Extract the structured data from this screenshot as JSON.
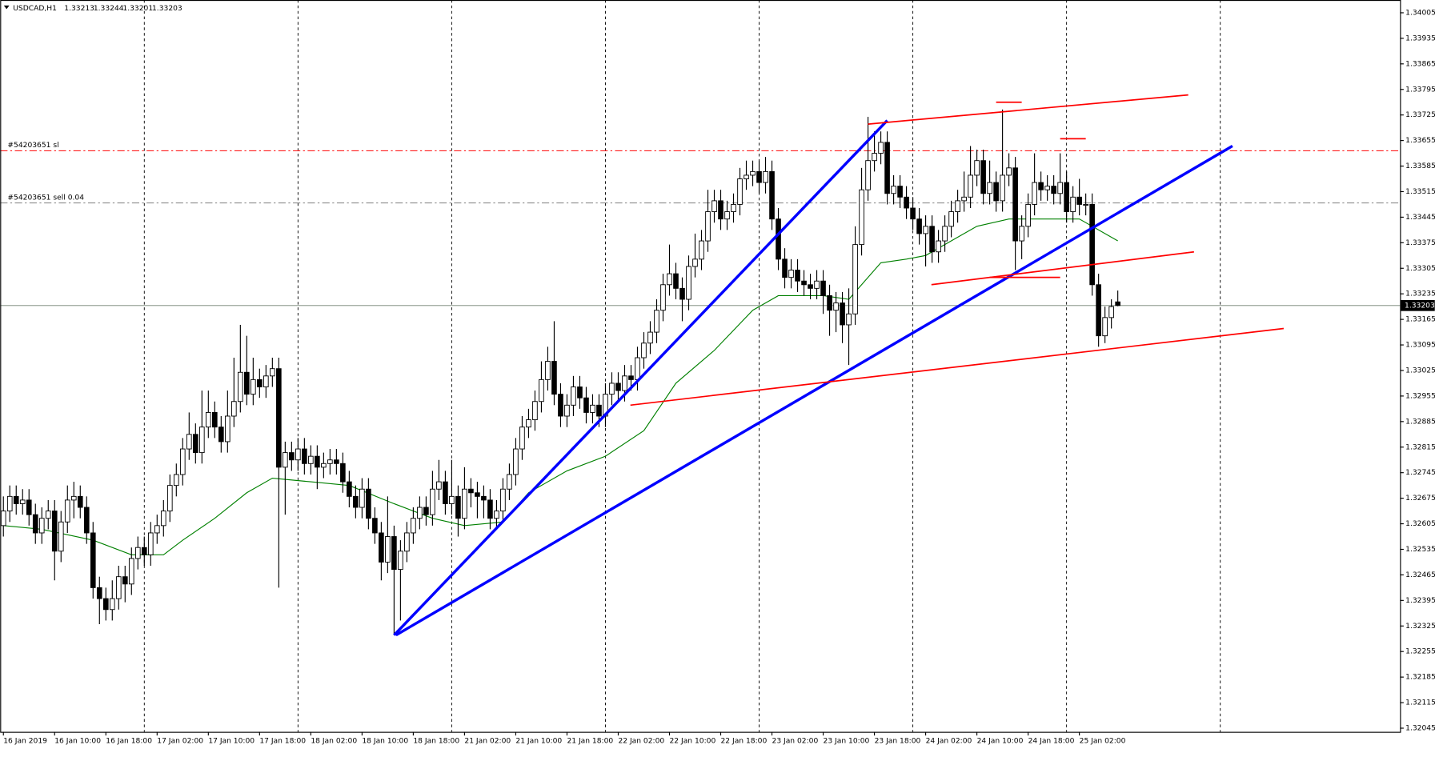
{
  "chart_data": {
    "type": "candlestick",
    "symbol": "USDCAD,H1",
    "xlim": [
      -0.5,
      218.07
    ],
    "ylim": [
      1.32035,
      1.3404
    ],
    "yticks": [
      1.34005,
      1.33935,
      1.33865,
      1.33795,
      1.33725,
      1.33655,
      1.33585,
      1.33515,
      1.33445,
      1.33375,
      1.33305,
      1.33235,
      1.33165,
      1.33095,
      1.33025,
      1.32955,
      1.32885,
      1.32815,
      1.32745,
      1.32675,
      1.32605,
      1.32535,
      1.32465,
      1.32395,
      1.32325,
      1.32255,
      1.32185,
      1.32115,
      1.32045
    ],
    "xticks": [
      {
        "value": 0,
        "label": "16 Jan 2019"
      },
      {
        "value": 8,
        "label": "16 Jan 10:00"
      },
      {
        "value": 16,
        "label": "16 Jan 18:00"
      },
      {
        "value": 24,
        "label": "17 Jan 02:00"
      },
      {
        "value": 32,
        "label": "17 Jan 10:00"
      },
      {
        "value": 40,
        "label": "17 Jan 18:00"
      },
      {
        "value": 48,
        "label": "18 Jan 02:00"
      },
      {
        "value": 56,
        "label": "18 Jan 10:00"
      },
      {
        "value": 64,
        "label": "18 Jan 18:00"
      },
      {
        "value": 72,
        "label": "21 Jan 02:00"
      },
      {
        "value": 80,
        "label": "21 Jan 10:00"
      },
      {
        "value": 88,
        "label": "21 Jan 18:00"
      },
      {
        "value": 96,
        "label": "22 Jan 02:00"
      },
      {
        "value": 104,
        "label": "22 Jan 10:00"
      },
      {
        "value": 112,
        "label": "22 Jan 18:00"
      },
      {
        "value": 120,
        "label": "23 Jan 02:00"
      },
      {
        "value": 128,
        "label": "23 Jan 10:00"
      },
      {
        "value": 136,
        "label": "23 Jan 18:00"
      },
      {
        "value": 144,
        "label": "24 Jan 02:00"
      },
      {
        "value": 152,
        "label": "24 Jan 10:00"
      },
      {
        "value": 160,
        "label": "24 Jan 18:00"
      },
      {
        "value": 168,
        "label": "25 Jan 02:00"
      }
    ],
    "vgrid": [
      22,
      46,
      70,
      94,
      118,
      142,
      166,
      190
    ],
    "bull_color": "#ffffff",
    "bear_color": "#000000",
    "ohlc": [
      [
        1.326,
        1.3268,
        1.3257,
        1.3264
      ],
      [
        1.3264,
        1.3271,
        1.3261,
        1.3268
      ],
      [
        1.3268,
        1.3271,
        1.3263,
        1.3266
      ],
      [
        1.3266,
        1.327,
        1.3263,
        1.3267
      ],
      [
        1.3267,
        1.327,
        1.326,
        1.3263
      ],
      [
        1.3263,
        1.3266,
        1.3255,
        1.3258
      ],
      [
        1.3258,
        1.3265,
        1.3255,
        1.3262
      ],
      [
        1.3262,
        1.3267,
        1.3259,
        1.3264
      ],
      [
        1.3264,
        1.3267,
        1.3245,
        1.3253
      ],
      [
        1.3253,
        1.3264,
        1.325,
        1.3261
      ],
      [
        1.3261,
        1.3271,
        1.3258,
        1.3267
      ],
      [
        1.3267,
        1.3272,
        1.3262,
        1.3268
      ],
      [
        1.3268,
        1.3271,
        1.3262,
        1.3265
      ],
      [
        1.3265,
        1.3268,
        1.3255,
        1.3258
      ],
      [
        1.3258,
        1.3261,
        1.324,
        1.3243
      ],
      [
        1.3243,
        1.3246,
        1.3233,
        1.324
      ],
      [
        1.324,
        1.3243,
        1.3234,
        1.3237
      ],
      [
        1.3237,
        1.3245,
        1.3234,
        1.324
      ],
      [
        1.324,
        1.3249,
        1.3237,
        1.3246
      ],
      [
        1.3246,
        1.3249,
        1.3239,
        1.3244
      ],
      [
        1.3244,
        1.3254,
        1.3241,
        1.3251
      ],
      [
        1.3251,
        1.3257,
        1.3248,
        1.3254
      ],
      [
        1.3254,
        1.3257,
        1.3249,
        1.3252
      ],
      [
        1.3252,
        1.3261,
        1.3249,
        1.3258
      ],
      [
        1.3258,
        1.3263,
        1.3255,
        1.326
      ],
      [
        1.326,
        1.3267,
        1.3257,
        1.3264
      ],
      [
        1.3264,
        1.3274,
        1.3261,
        1.3271
      ],
      [
        1.3271,
        1.3277,
        1.3268,
        1.3274
      ],
      [
        1.3274,
        1.3284,
        1.3271,
        1.3281
      ],
      [
        1.3281,
        1.3291,
        1.3278,
        1.3285
      ],
      [
        1.3285,
        1.3288,
        1.3277,
        1.328
      ],
      [
        1.328,
        1.3297,
        1.3277,
        1.3287
      ],
      [
        1.3287,
        1.3297,
        1.3284,
        1.3291
      ],
      [
        1.3291,
        1.3294,
        1.3284,
        1.3287
      ],
      [
        1.3287,
        1.329,
        1.328,
        1.3283
      ],
      [
        1.3283,
        1.3297,
        1.328,
        1.329
      ],
      [
        1.329,
        1.3306,
        1.3287,
        1.3294
      ],
      [
        1.3294,
        1.3315,
        1.3291,
        1.3302
      ],
      [
        1.3302,
        1.3312,
        1.3293,
        1.3296
      ],
      [
        1.3296,
        1.3306,
        1.3293,
        1.33
      ],
      [
        1.33,
        1.3303,
        1.3295,
        1.3298
      ],
      [
        1.3298,
        1.3304,
        1.3295,
        1.3301
      ],
      [
        1.3301,
        1.3306,
        1.3298,
        1.3303
      ],
      [
        1.3303,
        1.3306,
        1.3243,
        1.3276
      ],
      [
        1.3276,
        1.3283,
        1.3263,
        1.328
      ],
      [
        1.328,
        1.3283,
        1.3275,
        1.3278
      ],
      [
        1.3278,
        1.3284,
        1.3275,
        1.3281
      ],
      [
        1.3281,
        1.3284,
        1.3274,
        1.3277
      ],
      [
        1.3277,
        1.3282,
        1.3274,
        1.3279
      ],
      [
        1.3279,
        1.3282,
        1.327,
        1.3276
      ],
      [
        1.3276,
        1.328,
        1.3273,
        1.3277
      ],
      [
        1.3277,
        1.3281,
        1.3274,
        1.3278
      ],
      [
        1.3278,
        1.3281,
        1.3274,
        1.3277
      ],
      [
        1.3277,
        1.328,
        1.3269,
        1.3272
      ],
      [
        1.3272,
        1.3275,
        1.3265,
        1.3268
      ],
      [
        1.3268,
        1.3271,
        1.3262,
        1.3265
      ],
      [
        1.3265,
        1.3273,
        1.3262,
        1.327
      ],
      [
        1.327,
        1.3273,
        1.3259,
        1.3262
      ],
      [
        1.3262,
        1.3265,
        1.3255,
        1.3258
      ],
      [
        1.3258,
        1.3261,
        1.3245,
        1.325
      ],
      [
        1.325,
        1.3268,
        1.3247,
        1.3257
      ],
      [
        1.3257,
        1.326,
        1.323,
        1.3248
      ],
      [
        1.3248,
        1.3256,
        1.3234,
        1.3253
      ],
      [
        1.3253,
        1.3261,
        1.325,
        1.3258
      ],
      [
        1.3258,
        1.3265,
        1.3255,
        1.3262
      ],
      [
        1.3262,
        1.3268,
        1.3259,
        1.3265
      ],
      [
        1.3265,
        1.3268,
        1.326,
        1.3263
      ],
      [
        1.3263,
        1.3275,
        1.326,
        1.327
      ],
      [
        1.327,
        1.3278,
        1.3267,
        1.3272
      ],
      [
        1.3272,
        1.3275,
        1.3263,
        1.3266
      ],
      [
        1.3266,
        1.3278,
        1.3263,
        1.3268
      ],
      [
        1.3268,
        1.3271,
        1.3257,
        1.3262
      ],
      [
        1.3262,
        1.3276,
        1.3259,
        1.327
      ],
      [
        1.327,
        1.3273,
        1.3265,
        1.3269
      ],
      [
        1.3269,
        1.3272,
        1.3262,
        1.3268
      ],
      [
        1.3268,
        1.3271,
        1.3262,
        1.3267
      ],
      [
        1.3267,
        1.327,
        1.3259,
        1.3262
      ],
      [
        1.3262,
        1.3267,
        1.3259,
        1.3264
      ],
      [
        1.3264,
        1.3273,
        1.3261,
        1.327
      ],
      [
        1.327,
        1.3277,
        1.3267,
        1.3274
      ],
      [
        1.3274,
        1.3284,
        1.3271,
        1.3281
      ],
      [
        1.3281,
        1.329,
        1.3278,
        1.3287
      ],
      [
        1.3287,
        1.3292,
        1.3284,
        1.3289
      ],
      [
        1.3289,
        1.3297,
        1.3286,
        1.3294
      ],
      [
        1.3294,
        1.3305,
        1.3291,
        1.33
      ],
      [
        1.33,
        1.3309,
        1.3297,
        1.3305
      ],
      [
        1.3305,
        1.3316,
        1.3293,
        1.3296
      ],
      [
        1.3296,
        1.3299,
        1.3287,
        1.329
      ],
      [
        1.329,
        1.3296,
        1.3287,
        1.3293
      ],
      [
        1.3293,
        1.3301,
        1.329,
        1.3298
      ],
      [
        1.3298,
        1.3301,
        1.3292,
        1.3295
      ],
      [
        1.3295,
        1.3298,
        1.3288,
        1.3291
      ],
      [
        1.3291,
        1.3296,
        1.3288,
        1.3293
      ],
      [
        1.3293,
        1.3296,
        1.3287,
        1.329
      ],
      [
        1.329,
        1.3299,
        1.3287,
        1.3296
      ],
      [
        1.3296,
        1.3302,
        1.3293,
        1.3299
      ],
      [
        1.3299,
        1.3302,
        1.3294,
        1.3297
      ],
      [
        1.3297,
        1.3304,
        1.3294,
        1.3301
      ],
      [
        1.3301,
        1.3304,
        1.3297,
        1.33
      ],
      [
        1.33,
        1.3309,
        1.3297,
        1.3306
      ],
      [
        1.3306,
        1.3313,
        1.3303,
        1.331
      ],
      [
        1.331,
        1.3316,
        1.3307,
        1.3313
      ],
      [
        1.3313,
        1.3322,
        1.331,
        1.3319
      ],
      [
        1.3319,
        1.3329,
        1.3316,
        1.3326
      ],
      [
        1.3326,
        1.3337,
        1.3323,
        1.3329
      ],
      [
        1.3329,
        1.3332,
        1.3322,
        1.3325
      ],
      [
        1.3325,
        1.3328,
        1.3316,
        1.3322
      ],
      [
        1.3322,
        1.3334,
        1.3319,
        1.3331
      ],
      [
        1.3331,
        1.334,
        1.3328,
        1.3333
      ],
      [
        1.3333,
        1.3341,
        1.333,
        1.3338
      ],
      [
        1.3338,
        1.3352,
        1.3335,
        1.3346
      ],
      [
        1.3346,
        1.3352,
        1.3343,
        1.3349
      ],
      [
        1.3349,
        1.3352,
        1.3341,
        1.3344
      ],
      [
        1.3344,
        1.3349,
        1.3341,
        1.3346
      ],
      [
        1.3346,
        1.3351,
        1.3343,
        1.3348
      ],
      [
        1.3348,
        1.3358,
        1.3345,
        1.3355
      ],
      [
        1.3355,
        1.336,
        1.3352,
        1.3356
      ],
      [
        1.3356,
        1.336,
        1.3353,
        1.3357
      ],
      [
        1.3357,
        1.336,
        1.3351,
        1.3354
      ],
      [
        1.3354,
        1.3361,
        1.3351,
        1.3357
      ],
      [
        1.3357,
        1.336,
        1.3341,
        1.3344
      ],
      [
        1.3344,
        1.3347,
        1.333,
        1.3333
      ],
      [
        1.3333,
        1.3336,
        1.3325,
        1.3328
      ],
      [
        1.3328,
        1.3333,
        1.3325,
        1.333
      ],
      [
        1.333,
        1.3333,
        1.3324,
        1.3327
      ],
      [
        1.3327,
        1.333,
        1.3323,
        1.3326
      ],
      [
        1.3326,
        1.3329,
        1.3322,
        1.3325
      ],
      [
        1.3325,
        1.333,
        1.3322,
        1.3327
      ],
      [
        1.3327,
        1.333,
        1.3318,
        1.3323
      ],
      [
        1.3323,
        1.3326,
        1.3312,
        1.3319
      ],
      [
        1.3319,
        1.3324,
        1.3313,
        1.3321
      ],
      [
        1.3321,
        1.3324,
        1.331,
        1.3315
      ],
      [
        1.3315,
        1.3325,
        1.3304,
        1.3318
      ],
      [
        1.3318,
        1.3342,
        1.3315,
        1.3337
      ],
      [
        1.3337,
        1.3358,
        1.3334,
        1.3352
      ],
      [
        1.3352,
        1.3372,
        1.3349,
        1.336
      ],
      [
        1.336,
        1.3368,
        1.3357,
        1.3362
      ],
      [
        1.3362,
        1.3368,
        1.3359,
        1.3365
      ],
      [
        1.3365,
        1.3368,
        1.3348,
        1.3351
      ],
      [
        1.3351,
        1.3356,
        1.3348,
        1.3353
      ],
      [
        1.3353,
        1.3356,
        1.3347,
        1.335
      ],
      [
        1.335,
        1.3353,
        1.3344,
        1.3347
      ],
      [
        1.3347,
        1.335,
        1.3341,
        1.3344
      ],
      [
        1.3344,
        1.3347,
        1.3337,
        1.334
      ],
      [
        1.334,
        1.3345,
        1.3331,
        1.3342
      ],
      [
        1.3342,
        1.3345,
        1.3332,
        1.3335
      ],
      [
        1.3335,
        1.3341,
        1.3332,
        1.3338
      ],
      [
        1.3338,
        1.3345,
        1.3335,
        1.3342
      ],
      [
        1.3342,
        1.3349,
        1.3339,
        1.3346
      ],
      [
        1.3346,
        1.3352,
        1.3343,
        1.3349
      ],
      [
        1.3349,
        1.3357,
        1.3346,
        1.335
      ],
      [
        1.335,
        1.3364,
        1.3347,
        1.3356
      ],
      [
        1.3356,
        1.3363,
        1.3353,
        1.336
      ],
      [
        1.336,
        1.3363,
        1.3348,
        1.3351
      ],
      [
        1.3351,
        1.336,
        1.3348,
        1.3354
      ],
      [
        1.3354,
        1.3357,
        1.3346,
        1.3349
      ],
      [
        1.3349,
        1.3374,
        1.3346,
        1.3356
      ],
      [
        1.3356,
        1.3362,
        1.3353,
        1.3358
      ],
      [
        1.3358,
        1.3361,
        1.333,
        1.3338
      ],
      [
        1.3338,
        1.3345,
        1.3333,
        1.3342
      ],
      [
        1.3342,
        1.3351,
        1.3339,
        1.3348
      ],
      [
        1.3348,
        1.3362,
        1.3345,
        1.3354
      ],
      [
        1.3354,
        1.3357,
        1.3349,
        1.3352
      ],
      [
        1.3352,
        1.3356,
        1.3349,
        1.3353
      ],
      [
        1.3353,
        1.3356,
        1.3348,
        1.3351
      ],
      [
        1.3351,
        1.3362,
        1.3348,
        1.3354
      ],
      [
        1.3354,
        1.3357,
        1.3343,
        1.3346
      ],
      [
        1.3346,
        1.3353,
        1.3343,
        1.335
      ],
      [
        1.335,
        1.3355,
        1.3345,
        1.3348
      ],
      [
        1.3348,
        1.3351,
        1.3345,
        1.3348
      ],
      [
        1.3348,
        1.3351,
        1.3323,
        1.3326
      ],
      [
        1.3326,
        1.3329,
        1.3309,
        1.3312
      ],
      [
        1.3312,
        1.332,
        1.331,
        1.3317
      ],
      [
        1.3317,
        1.3322,
        1.3314,
        1.332
      ],
      [
        1.33213,
        1.33244,
        1.33201,
        1.33203
      ]
    ],
    "ma": {
      "color": "#008000",
      "x": [
        0,
        6,
        14,
        20,
        25,
        28,
        33,
        38,
        42,
        48,
        54,
        61,
        67,
        72,
        78,
        82,
        88,
        94,
        100,
        105,
        111,
        117,
        121,
        128,
        132,
        137,
        141,
        144,
        148,
        152,
        157,
        162,
        168,
        174
      ],
      "values": [
        1.326,
        1.3259,
        1.3256,
        1.3252,
        1.3252,
        1.3256,
        1.3262,
        1.3269,
        1.3273,
        1.3272,
        1.3271,
        1.3266,
        1.3262,
        1.326,
        1.3261,
        1.3269,
        1.3275,
        1.3279,
        1.3286,
        1.3299,
        1.3308,
        1.3319,
        1.3323,
        1.3323,
        1.3322,
        1.3332,
        1.3333,
        1.3334,
        1.3338,
        1.3342,
        1.3344,
        1.3344,
        1.3344,
        1.3338
      ]
    },
    "trendlines": [
      {
        "color": "#0000ff",
        "width": 3,
        "x": [
          61,
          138
        ],
        "values": [
          1.323,
          1.3371
        ]
      },
      {
        "color": "#0000ff",
        "width": 3,
        "x": [
          61.3,
          191.9
        ],
        "values": [
          1.323,
          1.3364
        ]
      },
      {
        "color": "#ff0000",
        "width": 1.5,
        "x": [
          135,
          185
        ],
        "values": [
          1.337,
          1.3378
        ]
      },
      {
        "color": "#ff0000",
        "width": 1.5,
        "x": [
          144.9,
          185.9
        ],
        "values": [
          1.3326,
          1.3335
        ]
      },
      {
        "color": "#ff0000",
        "width": 1.5,
        "x": [
          97.9,
          199.9
        ],
        "values": [
          1.3293,
          1.3314
        ]
      },
      {
        "color": "#ff0000",
        "width": 1.5,
        "x": [
          155,
          159
        ],
        "values": [
          1.3376,
          1.3376
        ]
      },
      {
        "color": "#ff0000",
        "width": 1.5,
        "x": [
          165,
          169
        ],
        "values": [
          1.3366,
          1.3366
        ]
      },
      {
        "color": "#ff0000",
        "width": 1.5,
        "x": [
          154,
          165
        ],
        "values": [
          1.3328,
          1.3328
        ]
      }
    ],
    "hlines": [
      {
        "label": "#54203651 sl",
        "value": 1.33627,
        "color": "#ff0000"
      },
      {
        "label": "#54203651 sell 0.04",
        "value": 1.33484,
        "color": "#808080"
      }
    ],
    "current": 1.33203,
    "current_color": "#708070"
  }
}
